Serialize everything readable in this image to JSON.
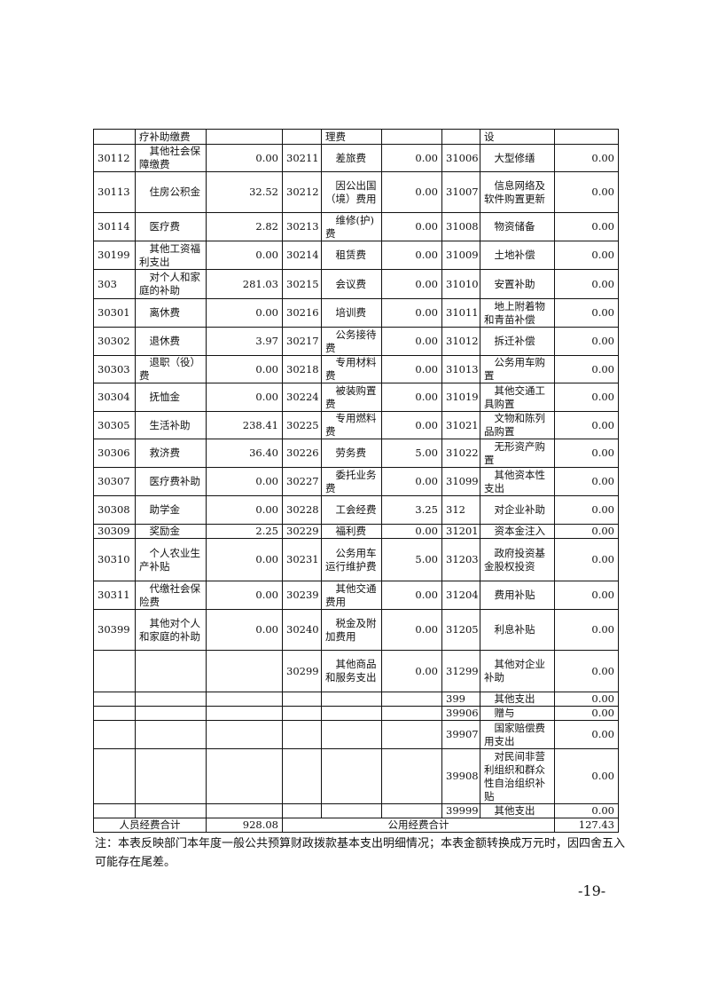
{
  "table": {
    "rows": [
      [
        "",
        "疗补助缴费",
        "",
        "",
        "理费",
        "",
        "",
        "设",
        ""
      ],
      [
        "30112",
        "其他社会保障缴费",
        "0.00",
        "30211",
        "差旅费",
        "0.00",
        "31006",
        "大型修缮",
        "0.00"
      ],
      [
        "30113",
        "住房公积金",
        "32.52",
        "30212",
        "因公出国（境）费用",
        "0.00",
        "31007",
        "信息网络及软件购置更新",
        "0.00"
      ],
      [
        "30114",
        "医疗费",
        "2.82",
        "30213",
        "维修(护)费",
        "0.00",
        "31008",
        "物资储备",
        "0.00"
      ],
      [
        "30199",
        "其他工资福利支出",
        "0.00",
        "30214",
        "租赁费",
        "0.00",
        "31009",
        "土地补偿",
        "0.00"
      ],
      [
        "303",
        "对个人和家庭的补助",
        "281.03",
        "30215",
        "会议费",
        "0.00",
        "31010",
        "安置补助",
        "0.00"
      ],
      [
        "30301",
        "离休费",
        "0.00",
        "30216",
        "培训费",
        "0.00",
        "31011",
        "地上附着物和青苗补偿",
        "0.00"
      ],
      [
        "30302",
        "退休费",
        "3.97",
        "30217",
        "公务接待费",
        "0.00",
        "31012",
        "拆迁补偿",
        "0.00"
      ],
      [
        "30303",
        "退职（役）费",
        "0.00",
        "30218",
        "专用材料费",
        "0.00",
        "31013",
        "公务用车购置",
        "0.00"
      ],
      [
        "30304",
        "抚恤金",
        "0.00",
        "30224",
        "被装购置费",
        "0.00",
        "31019",
        "其他交通工具购置",
        "0.00"
      ],
      [
        "30305",
        "生活补助",
        "238.41",
        "30225",
        "专用燃料费",
        "0.00",
        "31021",
        "文物和陈列品购置",
        "0.00"
      ],
      [
        "30306",
        "救济费",
        "36.40",
        "30226",
        "劳务费",
        "5.00",
        "31022",
        "无形资产购置",
        "0.00"
      ],
      [
        "30307",
        "医疗费补助",
        "0.00",
        "30227",
        "委托业务费",
        "0.00",
        "31099",
        "其他资本性支出",
        "0.00"
      ],
      [
        "30308",
        "助学金",
        "0.00",
        "30228",
        "工会经费",
        "3.25",
        "312",
        "对企业补助",
        "0.00"
      ],
      [
        "30309",
        "奖励金",
        "2.25",
        "30229",
        "福利费",
        "0.00",
        "31201",
        "资本金注入",
        "0.00"
      ],
      [
        "30310",
        "个人农业生产补贴",
        "0.00",
        "30231",
        "公务用车运行维护费",
        "5.00",
        "31203",
        "政府投资基金股权投资",
        "0.00"
      ],
      [
        "30311",
        "代缴社会保险费",
        "0.00",
        "30239",
        "其他交通费用",
        "0.00",
        "31204",
        "费用补贴",
        "0.00"
      ],
      [
        "30399",
        "其他对个人和家庭的补助",
        "0.00",
        "30240",
        "税金及附加费用",
        "0.00",
        "31205",
        "利息补贴",
        "0.00"
      ],
      [
        "",
        "",
        "",
        "30299",
        "其他商品和服务支出",
        "0.00",
        "31299",
        "其他对企业补助",
        "0.00"
      ],
      [
        "",
        "",
        "",
        "",
        "",
        "",
        "399",
        "其他支出",
        "0.00"
      ],
      [
        "",
        "",
        "",
        "",
        "",
        "",
        "39906",
        "赠与",
        "0.00"
      ],
      [
        "",
        "",
        "",
        "",
        "",
        "",
        "39907",
        "国家赔偿费用支出",
        "0.00"
      ],
      [
        "",
        "",
        "",
        "",
        "",
        "",
        "39908",
        "对民间非营利组织和群众性自治组织补贴",
        "0.00"
      ],
      [
        "",
        "",
        "",
        "",
        "",
        "",
        "39999",
        "其他支出",
        "0.00"
      ]
    ],
    "totals": {
      "personnel_label": "人员经费合计",
      "personnel_value": "928.08",
      "public_label": "公用经费合计",
      "public_value": "127.43"
    }
  },
  "note": "注：本表反映部门本年度一般公共预算财政拨款基本支出明细情况；本表金额转换成万元时，因四舍五入可能存在尾差。",
  "page_number": "-19-"
}
